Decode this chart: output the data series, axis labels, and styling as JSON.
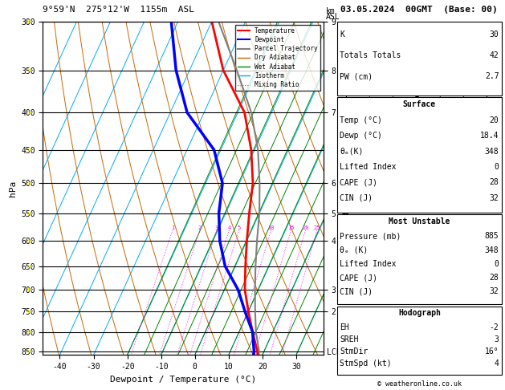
{
  "title_left": "9°59'N  275°12'W  1155m  ASL",
  "title_right": "03.05.2024  00GMT  (Base: 00)",
  "xlabel": "Dewpoint / Temperature (°C)",
  "ylabel_left": "hPa",
  "pressure_levels": [
    300,
    350,
    400,
    450,
    500,
    550,
    600,
    650,
    700,
    750,
    800,
    850
  ],
  "p_min": 300,
  "p_max": 860,
  "t_min": -45,
  "t_max": 38,
  "skew": 1.0,
  "temp_profile_p": [
    885,
    850,
    800,
    750,
    700,
    650,
    600,
    550,
    500,
    450,
    400,
    350,
    300
  ],
  "temp_profile_t": [
    20,
    18,
    14,
    10,
    6,
    3,
    0,
    -3,
    -6,
    -11,
    -18,
    -30,
    -40
  ],
  "dewp_profile_p": [
    885,
    850,
    800,
    750,
    700,
    650,
    600,
    550,
    500,
    450,
    400,
    350,
    300
  ],
  "dewp_profile_t": [
    18.4,
    17,
    14,
    9,
    4,
    -3,
    -8,
    -12,
    -15,
    -22,
    -35,
    -44,
    -52
  ],
  "parcel_profile_p": [
    885,
    850,
    800,
    750,
    700,
    650,
    600,
    550,
    500,
    450,
    400,
    350,
    300
  ],
  "parcel_profile_t": [
    20,
    18.5,
    15,
    12,
    9,
    6,
    3,
    0,
    -4,
    -9,
    -16,
    -26,
    -38
  ],
  "mixing_ratio_values": [
    1,
    2,
    3,
    4,
    5,
    10,
    15,
    20,
    25
  ],
  "lcl_pressure": 852,
  "km_ticks": {
    "300": "9",
    "350": "8",
    "400": "7",
    "500": "6",
    "550": "5",
    "600": "4",
    "700": "3",
    "750": "2"
  },
  "lcl_label": "LCL",
  "right_panel": {
    "K": 30,
    "Totals_Totals": 42,
    "PW_cm": 2.7,
    "Surface_Temp": 20,
    "Surface_Dewp": 18.4,
    "Surface_theta_e": 348,
    "Surface_LiftedIndex": 0,
    "Surface_CAPE": 28,
    "Surface_CIN": 32,
    "MU_Pressure": 885,
    "MU_theta_e": 348,
    "MU_LiftedIndex": 0,
    "MU_CAPE": 28,
    "MU_CIN": 32,
    "Hodo_EH": -2,
    "Hodo_SREH": 3,
    "Hodo_StmDir": 16,
    "Hodo_StmSpd": 4
  },
  "footer": "© weatheronline.co.uk",
  "colors": {
    "temperature": "#ff0000",
    "dewpoint": "#0000ff",
    "parcel": "#808080",
    "dry_adiabat": "#cc6600",
    "wet_adiabat": "#008800",
    "isotherm": "#00aaff",
    "mixing_ratio": "#ff00ff",
    "axes": "#000000"
  }
}
